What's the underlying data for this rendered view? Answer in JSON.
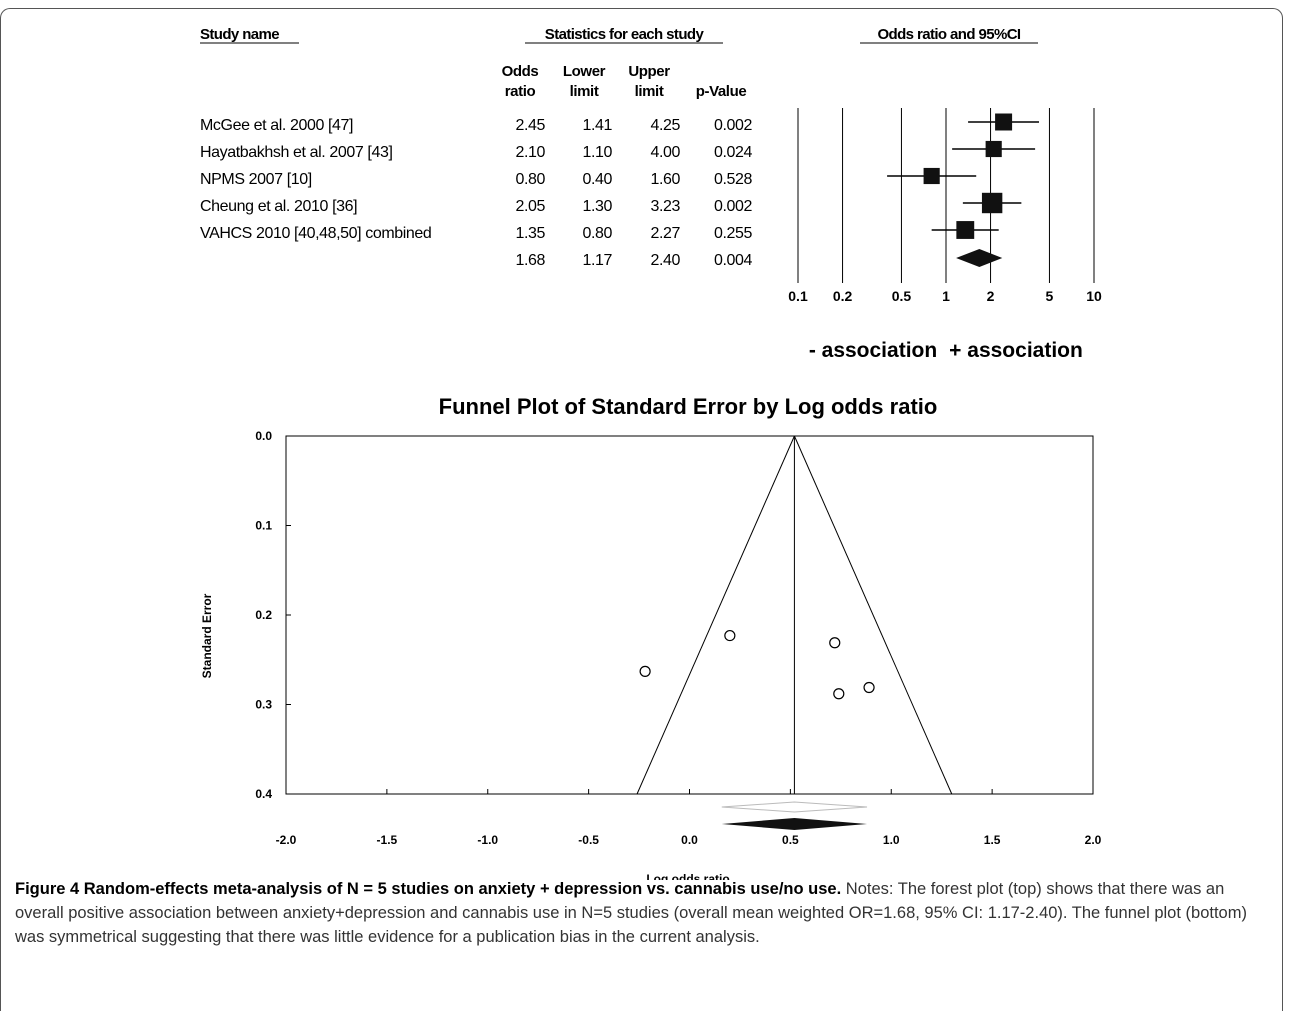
{
  "forest": {
    "headers": {
      "study_name": "Study name",
      "statistics": "Statistics for each study",
      "odds_ratio_ci": "Odds ratio and 95%CI"
    },
    "columns": [
      {
        "line1": "Odds",
        "line2": "ratio"
      },
      {
        "line1": "Lower",
        "line2": "limit"
      },
      {
        "line1": "Upper",
        "line2": "limit"
      },
      {
        "line1": "",
        "line2": "p-Value"
      }
    ],
    "rows": [
      {
        "study": "McGee et al. 2000 [47]",
        "or": "2.45",
        "lower": "1.41",
        "upper": "4.25",
        "p": "0.002"
      },
      {
        "study": "Hayatbakhsh et al. 2007 [43]",
        "or": "2.10",
        "lower": "1.10",
        "upper": "4.00",
        "p": "0.024"
      },
      {
        "study": "NPMS 2007 [10]",
        "or": "0.80",
        "lower": "0.40",
        "upper": "1.60",
        "p": "0.528"
      },
      {
        "study": "Cheung et al. 2010 [36]",
        "or": "2.05",
        "lower": "1.30",
        "upper": "3.23",
        "p": "0.002"
      },
      {
        "study": "VAHCS 2010 [40,48,50] combined",
        "or": "1.35",
        "lower": "0.80",
        "upper": "2.27",
        "p": "0.255"
      }
    ],
    "summary": {
      "study": "",
      "or": "1.68",
      "lower": "1.17",
      "upper": "2.40",
      "p": "0.004"
    },
    "axis_ticks": [
      "0.1",
      "0.2",
      "0.5",
      "1",
      "2",
      "5",
      "10"
    ],
    "neg_label": "- association",
    "pos_label": "+ association"
  },
  "chart_data": [
    {
      "type": "forest",
      "title": "",
      "scale": "log",
      "x_ticks": [
        0.1,
        0.2,
        0.5,
        1,
        2,
        5,
        10
      ],
      "studies": [
        {
          "name": "McGee et al. 2000 [47]",
          "or": 2.45,
          "lower": 1.41,
          "upper": 4.25,
          "p": 0.002,
          "weight": 1.0
        },
        {
          "name": "Hayatbakhsh et al. 2007 [43]",
          "or": 2.1,
          "lower": 1.1,
          "upper": 4.0,
          "p": 0.024,
          "weight": 0.95
        },
        {
          "name": "NPMS 2007 [10]",
          "or": 0.8,
          "lower": 0.4,
          "upper": 1.6,
          "p": 0.528,
          "weight": 0.95
        },
        {
          "name": "Cheung et al. 2010 [36]",
          "or": 2.05,
          "lower": 1.3,
          "upper": 3.23,
          "p": 0.002,
          "weight": 1.2
        },
        {
          "name": "VAHCS 2010 [40,48,50] combined",
          "or": 1.35,
          "lower": 0.8,
          "upper": 2.27,
          "p": 0.255,
          "weight": 1.05
        }
      ],
      "summary": {
        "or": 1.68,
        "lower": 1.17,
        "upper": 2.4,
        "p": 0.004
      }
    },
    {
      "type": "scatter",
      "title": "Funnel Plot of Standard Error by Log odds ratio",
      "xlabel": "Log odds ratio",
      "ylabel": "Standard Error",
      "xlim": [
        -2.0,
        2.0
      ],
      "ylim": [
        0.0,
        0.4
      ],
      "y_inverted": true,
      "x_ticks": [
        "-2.0",
        "-1.5",
        "-1.0",
        "-0.5",
        "0.0",
        "0.5",
        "1.0",
        "1.5",
        "2.0"
      ],
      "y_ticks": [
        "0.0",
        "0.1",
        "0.2",
        "0.3",
        "0.4"
      ],
      "points": [
        {
          "x": 0.2,
          "y": 0.223
        },
        {
          "x": 0.74,
          "y": 0.288
        },
        {
          "x": -0.22,
          "y": 0.263
        },
        {
          "x": 0.89,
          "y": 0.281
        },
        {
          "x": 0.72,
          "y": 0.231
        }
      ],
      "mean": 0.52,
      "funnel_base": [
        -0.26,
        1.3
      ],
      "summary_diamond": {
        "center": 0.52,
        "lower": 0.16,
        "upper": 0.88
      },
      "adjusted_diamond": {
        "center": 0.52,
        "lower": 0.16,
        "upper": 0.88
      }
    }
  ],
  "caption": {
    "title": "Figure 4 Random-effects meta-analysis of N = 5 studies on anxiety + depression vs. cannabis use/no use.",
    "notes": "Notes: The forest plot (top) shows that there was an overall positive association between anxiety+depression and cannabis use in N=5 studies (overall mean weighted OR=1.68, 95% CI: 1.17-2.40). The funnel plot (bottom) was symmetrical suggesting that there was little evidence for a publication bias in the current analysis."
  }
}
